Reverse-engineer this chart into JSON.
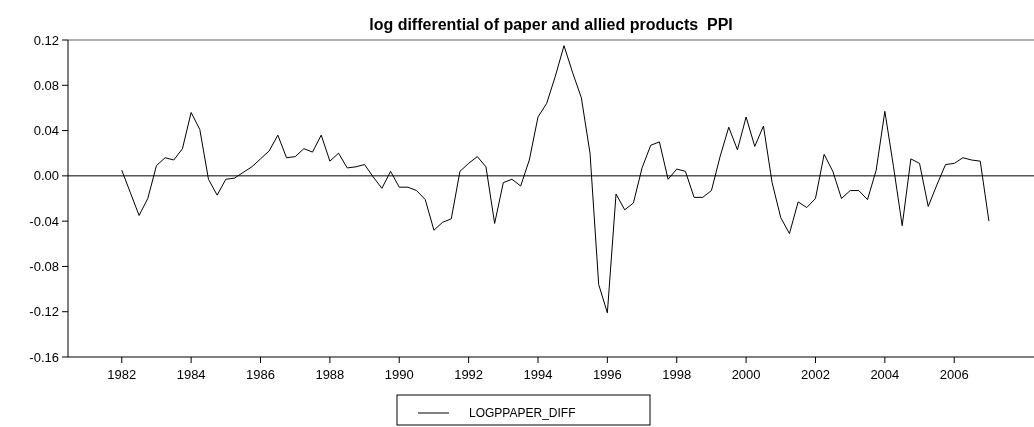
{
  "chart_data": {
    "type": "line",
    "title": "log differential of paper and allied products  PPI",
    "x": [
      1982,
      1982.25,
      1982.5,
      1982.75,
      1983,
      1983.25,
      1983.5,
      1983.75,
      1984,
      1984.25,
      1984.5,
      1984.75,
      1985,
      1985.25,
      1985.5,
      1985.75,
      1986,
      1986.25,
      1986.5,
      1986.75,
      1987,
      1987.25,
      1987.5,
      1987.75,
      1988,
      1988.25,
      1988.5,
      1988.75,
      1989,
      1989.25,
      1989.5,
      1989.75,
      1990,
      1990.25,
      1990.5,
      1990.75,
      1991,
      1991.25,
      1991.5,
      1991.75,
      1992,
      1992.25,
      1992.5,
      1992.75,
      1993,
      1993.25,
      1993.5,
      1993.75,
      1994,
      1994.25,
      1994.5,
      1994.75,
      1995,
      1995.25,
      1995.5,
      1995.75,
      1996,
      1996.25,
      1996.5,
      1996.75,
      1997,
      1997.25,
      1997.5,
      1997.75,
      1998,
      1998.25,
      1998.5,
      1998.75,
      1999,
      1999.25,
      1999.5,
      1999.75,
      2000,
      2000.25,
      2000.5,
      2000.75,
      2001,
      2001.25,
      2001.5,
      2001.75,
      2002,
      2002.25,
      2002.5,
      2002.75,
      2003,
      2003.25,
      2003.5,
      2003.75,
      2004,
      2004.25,
      2004.5,
      2004.75,
      2005,
      2005.25,
      2005.5,
      2005.75,
      2006,
      2006.25,
      2006.5,
      2006.75,
      2007
    ],
    "series": [
      {
        "name": "LOGPPAPER_DIFF",
        "color": "#000000",
        "values": [
          0.005,
          -0.015,
          -0.035,
          -0.02,
          0.009,
          0.016,
          0.014,
          0.024,
          0.056,
          0.041,
          -0.003,
          -0.017,
          -0.003,
          -0.002,
          0.003,
          0.008,
          0.015,
          0.022,
          0.036,
          0.016,
          0.017,
          0.024,
          0.021,
          0.036,
          0.013,
          0.02,
          0.007,
          0.008,
          0.01,
          -0.001,
          -0.011,
          0.004,
          -0.01,
          -0.01,
          -0.013,
          -0.021,
          -0.048,
          -0.041,
          -0.038,
          0.004,
          0.011,
          0.017,
          0.008,
          -0.042,
          -0.006,
          -0.003,
          -0.009,
          0.014,
          0.052,
          0.064,
          0.088,
          0.115,
          0.091,
          0.069,
          0.02,
          -0.096,
          -0.121,
          -0.016,
          -0.03,
          -0.024,
          0.007,
          0.027,
          0.03,
          -0.003,
          0.006,
          0.004,
          -0.019,
          -0.019,
          -0.013,
          0.017,
          0.043,
          0.023,
          0.052,
          0.026,
          0.044,
          -0.006,
          -0.037,
          -0.051,
          -0.023,
          -0.028,
          -0.02,
          0.019,
          0.004,
          -0.02,
          -0.013,
          -0.013,
          -0.021,
          0.005,
          0.057,
          0.008,
          -0.044,
          0.015,
          0.011,
          -0.027,
          -0.008,
          0.01,
          0.011,
          0.016,
          0.014,
          0.013,
          -0.04
        ]
      }
    ],
    "xlim": [
      1980.45,
      2008.3
    ],
    "xticks": [
      1982,
      1984,
      1986,
      1988,
      1990,
      1992,
      1994,
      1996,
      1998,
      2000,
      2002,
      2004,
      2006
    ],
    "ylim": [
      -0.16,
      0.12
    ],
    "yticks": [
      -0.16,
      -0.12,
      -0.08,
      -0.04,
      {
        "value": 0,
        "label": "0.00"
      },
      0.04,
      0.08,
      0.12
    ],
    "ref_lines": [
      {
        "axis": "y",
        "value": 0,
        "label": null,
        "color": "#000000"
      }
    ],
    "grid": false,
    "legend": "bottom",
    "marker": "none",
    "line_style": "solid"
  }
}
